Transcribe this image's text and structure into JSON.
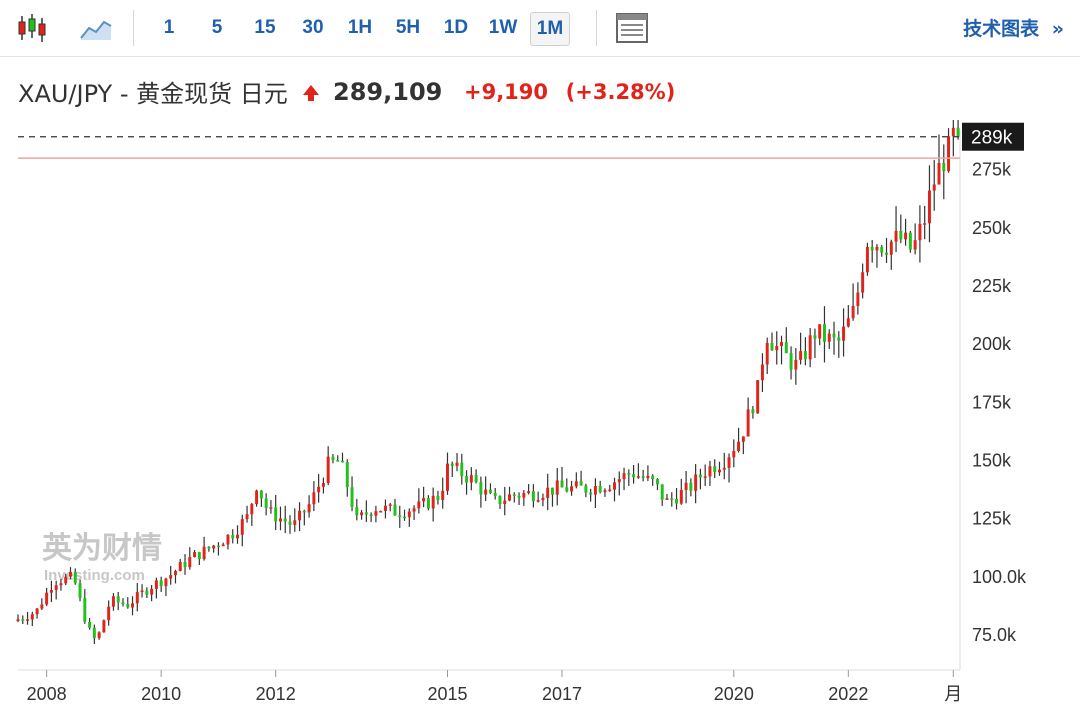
{
  "toolbar": {
    "intervals": [
      "1",
      "5",
      "15",
      "30",
      "1H",
      "5H",
      "1D",
      "1W",
      "1M"
    ],
    "active_interval": "1M",
    "tech_chart_label": "技术图表",
    "tech_chart_chevron": "»",
    "icons": [
      "candlestick-chart-icon",
      "line-chart-icon",
      "table-view-icon"
    ]
  },
  "quote": {
    "symbol": "XAU/JPY - 黄金现货 日元",
    "price": "289,109",
    "change": "+9,190",
    "change_pct": "(+3.28%)",
    "direction": "up"
  },
  "watermark": {
    "text": "英为财情",
    "subtext": "Investing.com"
  },
  "colors": {
    "up": "#e2231a",
    "down": "#21c11d",
    "link": "#1f5fae",
    "ref_line": "#f3a39e",
    "last_price_line": "#333333"
  },
  "chart_data": {
    "type": "candlestick",
    "interval": "monthly",
    "y_axis": {
      "min": 60000,
      "max": 292000,
      "ticks": [
        75000,
        100000,
        125000,
        150000,
        175000,
        200000,
        225000,
        250000,
        275000
      ],
      "tick_labels": [
        "75.0k",
        "100.0k",
        "125k",
        "150k",
        "175k",
        "200k",
        "225k",
        "250k",
        "275k"
      ],
      "position": "right"
    },
    "x_axis": {
      "tick_labels": [
        "2008",
        "2010",
        "2012",
        "2015",
        "2017",
        "2020",
        "2022",
        "月"
      ],
      "tick_dates": [
        2008.0,
        2010.0,
        2012.0,
        2015.0,
        2017.0,
        2020.0,
        2022.0,
        2023.833
      ],
      "start": 2007.5,
      "end": 2023.95
    },
    "last_price_label": "289k",
    "last_price": 289109,
    "previous_close": 279919,
    "anchors": [
      [
        2007.5,
        81000
      ],
      [
        2007.9,
        85000
      ],
      [
        2008.2,
        98000
      ],
      [
        2008.55,
        100000
      ],
      [
        2008.8,
        78000
      ],
      [
        2008.95,
        72000
      ],
      [
        2009.2,
        90000
      ],
      [
        2009.5,
        88000
      ],
      [
        2009.9,
        96000
      ],
      [
        2010.2,
        100000
      ],
      [
        2010.6,
        108000
      ],
      [
        2010.9,
        112000
      ],
      [
        2011.3,
        118000
      ],
      [
        2011.6,
        126000
      ],
      [
        2011.75,
        140000
      ],
      [
        2011.95,
        128000
      ],
      [
        2012.4,
        122000
      ],
      [
        2012.7,
        132000
      ],
      [
        2013.0,
        148000
      ],
      [
        2013.2,
        150000
      ],
      [
        2013.35,
        138000
      ],
      [
        2013.5,
        124000
      ],
      [
        2013.8,
        130000
      ],
      [
        2014.2,
        128000
      ],
      [
        2014.6,
        130000
      ],
      [
        2014.95,
        135000
      ],
      [
        2015.1,
        148000
      ],
      [
        2015.5,
        142000
      ],
      [
        2015.9,
        132000
      ],
      [
        2016.2,
        135000
      ],
      [
        2016.6,
        136000
      ],
      [
        2017.0,
        138000
      ],
      [
        2017.5,
        138000
      ],
      [
        2017.9,
        140000
      ],
      [
        2018.3,
        145000
      ],
      [
        2018.7,
        140000
      ],
      [
        2018.9,
        132000
      ],
      [
        2019.3,
        138000
      ],
      [
        2019.6,
        146000
      ],
      [
        2019.9,
        150000
      ],
      [
        2020.2,
        160000
      ],
      [
        2020.5,
        180000
      ],
      [
        2020.65,
        205000
      ],
      [
        2020.85,
        198000
      ],
      [
        2021.2,
        190000
      ],
      [
        2021.5,
        205000
      ],
      [
        2021.9,
        200000
      ],
      [
        2022.2,
        215000
      ],
      [
        2022.4,
        245000
      ],
      [
        2022.7,
        243000
      ],
      [
        2023.0,
        245000
      ],
      [
        2023.2,
        240000
      ],
      [
        2023.4,
        252000
      ],
      [
        2023.55,
        268000
      ],
      [
        2023.75,
        280000
      ],
      [
        2023.85,
        283000
      ],
      [
        2023.92,
        289109
      ]
    ]
  }
}
